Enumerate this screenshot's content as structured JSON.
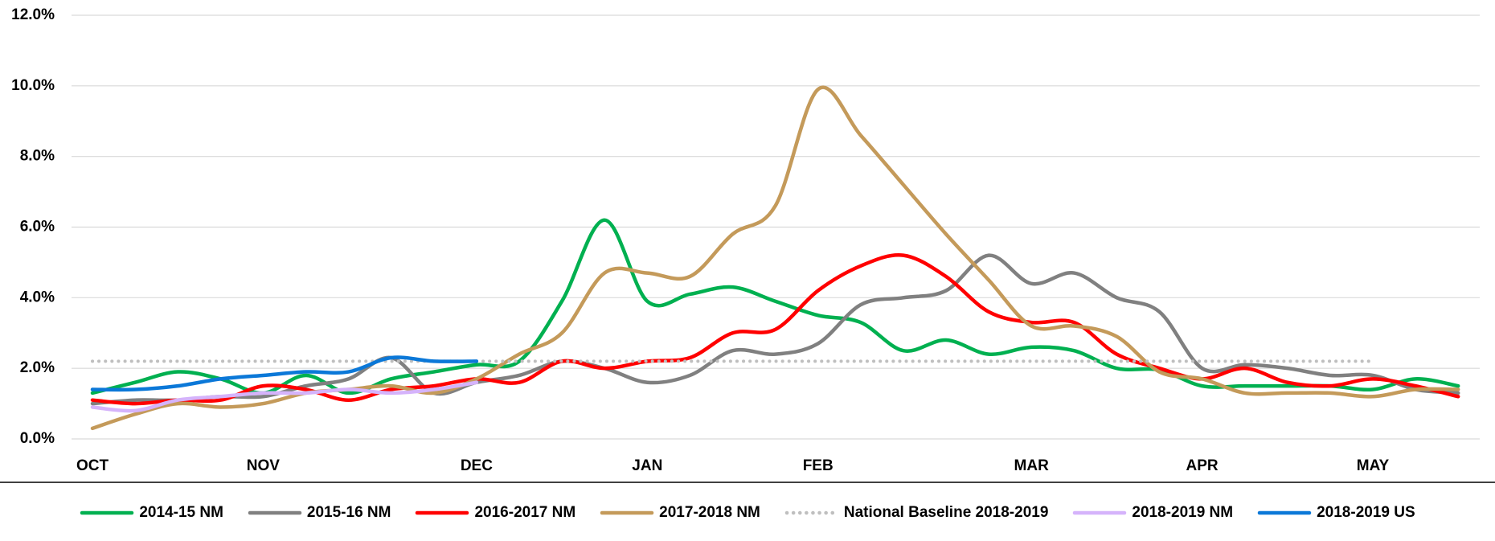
{
  "chart_data": {
    "type": "line",
    "categories": [
      "OCT",
      null,
      null,
      null,
      "NOV",
      null,
      null,
      null,
      null,
      "DEC",
      null,
      null,
      null,
      "JAN",
      null,
      null,
      null,
      "FEB",
      null,
      null,
      null,
      null,
      "MAR",
      null,
      null,
      null,
      "APR",
      null,
      null,
      null,
      "MAY",
      null,
      null
    ],
    "ylim": [
      0,
      12
    ],
    "yticks": [
      {
        "value": 0,
        "label": "0.0%"
      },
      {
        "value": 2,
        "label": "2.0%"
      },
      {
        "value": 4,
        "label": "4.0%"
      },
      {
        "value": 6,
        "label": "6.0%"
      },
      {
        "value": 8,
        "label": "8.0%"
      },
      {
        "value": 10,
        "label": "10.0%"
      },
      {
        "value": 12,
        "label": "12.0%"
      }
    ],
    "grid": true,
    "smooth": true,
    "legend": "bottom",
    "series": [
      {
        "name": "2014-15 NM",
        "color": "#00b050",
        "values": [
          1.3,
          1.6,
          1.9,
          1.7,
          1.3,
          1.8,
          1.3,
          1.7,
          1.9,
          2.1,
          2.2,
          3.9,
          6.2,
          3.9,
          4.1,
          4.3,
          3.9,
          3.5,
          3.3,
          2.5,
          2.8,
          2.4,
          2.6,
          2.5,
          2.0,
          1.95,
          1.5,
          1.5,
          1.5,
          1.5,
          1.4,
          1.7,
          1.5
        ]
      },
      {
        "name": "2015-16 NM",
        "color": "#808080",
        "values": [
          1.0,
          1.1,
          1.1,
          1.2,
          1.2,
          1.5,
          1.7,
          2.3,
          1.3,
          1.6,
          1.8,
          2.2,
          2.0,
          1.6,
          1.8,
          2.5,
          2.4,
          2.7,
          3.8,
          4.0,
          4.2,
          5.2,
          4.4,
          4.7,
          4.0,
          3.6,
          2.0,
          2.1,
          2.0,
          1.8,
          1.8,
          1.4,
          1.3
        ]
      },
      {
        "name": "2016-2017 NM",
        "color": "#ff0000",
        "values": [
          1.1,
          1.0,
          1.1,
          1.1,
          1.5,
          1.4,
          1.1,
          1.4,
          1.5,
          1.7,
          1.6,
          2.2,
          2.0,
          2.2,
          2.3,
          3.0,
          3.1,
          4.2,
          4.9,
          5.2,
          4.6,
          3.6,
          3.3,
          3.3,
          2.4,
          2.0,
          1.7,
          2.0,
          1.6,
          1.5,
          1.7,
          1.5,
          1.2
        ]
      },
      {
        "name": "2017-2018 NM",
        "color": "#c49a5a",
        "values": [
          0.3,
          0.7,
          1.0,
          0.9,
          1.0,
          1.3,
          1.4,
          1.5,
          1.3,
          1.7,
          2.4,
          3.0,
          4.7,
          4.7,
          4.6,
          5.8,
          6.6,
          9.9,
          8.6,
          7.2,
          5.8,
          4.5,
          3.2,
          3.2,
          2.9,
          1.9,
          1.7,
          1.3,
          1.3,
          1.3,
          1.2,
          1.4,
          1.4
        ]
      },
      {
        "name": "National Baseline 2018-2019",
        "color": "#bfbfbf",
        "dotted": true,
        "values": [
          2.2,
          2.2,
          2.2,
          2.2,
          2.2,
          2.2,
          2.2,
          2.2,
          2.2,
          2.2,
          2.2,
          2.2,
          2.2,
          2.2,
          2.2,
          2.2,
          2.2,
          2.2,
          2.2,
          2.2,
          2.2,
          2.2,
          2.2,
          2.2,
          2.2,
          2.2,
          2.2,
          2.2,
          2.2,
          2.2,
          2.2,
          null,
          null
        ]
      },
      {
        "name": "2018-2019 NM",
        "color": "#d5b3fb",
        "values": [
          0.9,
          0.8,
          1.1,
          1.2,
          1.3,
          1.3,
          1.4,
          1.3,
          1.4,
          1.6,
          null,
          null,
          null,
          null,
          null,
          null,
          null,
          null,
          null,
          null,
          null,
          null,
          null,
          null,
          null,
          null,
          null,
          null,
          null,
          null,
          null,
          null,
          null
        ]
      },
      {
        "name": "2018-2019 US",
        "color": "#0b78d8",
        "values": [
          1.4,
          1.4,
          1.5,
          1.7,
          1.8,
          1.9,
          1.9,
          2.3,
          2.2,
          2.2,
          null,
          null,
          null,
          null,
          null,
          null,
          null,
          null,
          null,
          null,
          null,
          null,
          null,
          null,
          null,
          null,
          null,
          null,
          null,
          null,
          null,
          null,
          null
        ]
      }
    ]
  }
}
